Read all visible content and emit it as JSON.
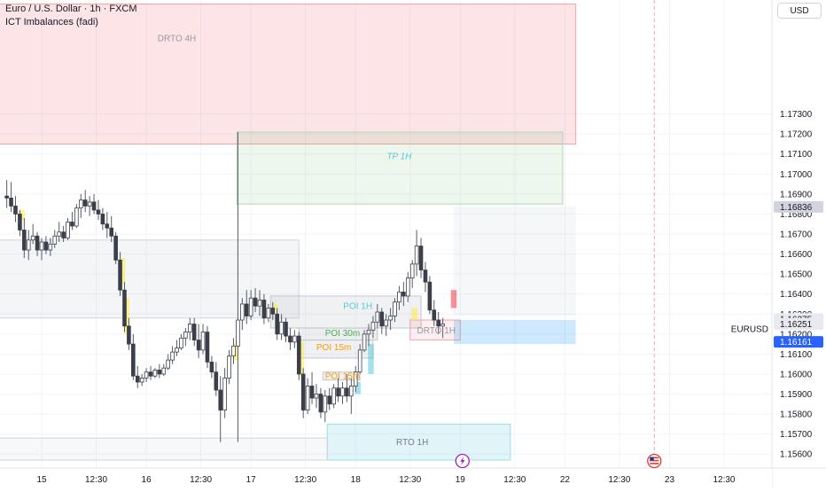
{
  "header": {
    "title": "Euro / U.S. Dollar · 1h · FXCM",
    "indicator": "ICT Imbalances (fadi)",
    "currency": "USD"
  },
  "chart_data": {
    "type": "candlestick",
    "symbol": "EURUSD",
    "title": "Euro / U.S. Dollar · 1h · FXCM",
    "ylim": [
      1.1553,
      1.1787
    ],
    "y_ticks": [
      {
        "value": 1.173,
        "label": "1.17300"
      },
      {
        "value": 1.172,
        "label": "1.17200"
      },
      {
        "value": 1.171,
        "label": "1.17100"
      },
      {
        "value": 1.17,
        "label": "1.17000"
      },
      {
        "value": 1.169,
        "label": "1.16900"
      },
      {
        "value": 1.168,
        "label": "1.16800"
      },
      {
        "value": 1.167,
        "label": "1.16700"
      },
      {
        "value": 1.166,
        "label": "1.16600"
      },
      {
        "value": 1.165,
        "label": "1.16500"
      },
      {
        "value": 1.164,
        "label": "1.16400"
      },
      {
        "value": 1.163,
        "label": "1.16300"
      },
      {
        "value": 1.162,
        "label": "1.16200"
      },
      {
        "value": 1.161,
        "label": "1.16100"
      },
      {
        "value": 1.16,
        "label": "1.16000"
      },
      {
        "value": 1.159,
        "label": "1.15900"
      },
      {
        "value": 1.158,
        "label": "1.15800"
      },
      {
        "value": 1.157,
        "label": "1.15700"
      },
      {
        "value": 1.156,
        "label": "1.15600"
      }
    ],
    "x_ticks": [
      {
        "t": 8,
        "label": "15"
      },
      {
        "t": 20.5,
        "label": "12:30"
      },
      {
        "t": 32,
        "label": "16"
      },
      {
        "t": 44.5,
        "label": "12:30"
      },
      {
        "t": 56,
        "label": "17"
      },
      {
        "t": 68.5,
        "label": "12:30"
      },
      {
        "t": 80,
        "label": "18"
      },
      {
        "t": 92.5,
        "label": "12:30"
      },
      {
        "t": 104,
        "label": "19"
      },
      {
        "t": 116.5,
        "label": "12:30"
      },
      {
        "t": 128,
        "label": "22"
      },
      {
        "t": 140.5,
        "label": "12:30"
      },
      {
        "t": 152,
        "label": "23"
      },
      {
        "t": 164.5,
        "label": "12:30"
      }
    ],
    "price_labels": [
      {
        "value": 1.16836,
        "label": "1.16836",
        "style": "gray"
      },
      {
        "value": 1.16275,
        "label": "1.16275",
        "style": "light"
      },
      {
        "value": 1.16251,
        "label": "1.16251",
        "style": "light"
      },
      {
        "value": 1.16161,
        "label": "1.16161",
        "style": "blue"
      }
    ],
    "zones": [
      {
        "label": "DRTO 4H",
        "t0": -2,
        "t1": 130.5,
        "top": 1.1785,
        "bottom": 1.1715,
        "fill": "rgba(242,54,69,0.13)",
        "stroke": "#f4a3a8",
        "text_color": "#9598a1",
        "text_t": 39,
        "text_y": 1.1768
      },
      {
        "label": "TP 1H",
        "t0": 52.8,
        "t1": 127.5,
        "top": 1.1721,
        "bottom": 1.1685,
        "fill": "rgba(76,175,80,0.10)",
        "stroke": "#b2d8b4",
        "text_color": "#5ac8d8",
        "text_t": 90,
        "text_y": 1.1709,
        "italic": true
      },
      {
        "label": "",
        "t0": -2,
        "t1": 67,
        "top": 1.1667,
        "bottom": 1.1628,
        "fill": "rgba(180,186,196,0.14)",
        "stroke": "#d1d4dc",
        "text_color": "#9598a1"
      },
      {
        "label": "",
        "t0": 102.5,
        "t1": 130.5,
        "top": 1.1684,
        "bottom": 1.1629,
        "fill": "rgba(180,186,196,0.12)",
        "stroke": "rgba(0,0,0,0)",
        "text_color": "#9598a1"
      },
      {
        "label": "POI 1H",
        "t0": 60.5,
        "t1": 95,
        "top": 1.1639,
        "bottom": 1.1623,
        "fill": "rgba(180,186,196,0.20)",
        "stroke": "#c3c6ce",
        "text_color": "#5ac8d8",
        "text_t": 80.5,
        "text_y": 1.1634
      },
      {
        "label": "POI 30m",
        "t0": 67,
        "t1": 85,
        "top": 1.1623,
        "bottom": 1.1617,
        "fill": "rgba(180,186,196,0.25)",
        "stroke": "#c3c6ce",
        "text_color": "#4caf50",
        "text_t": 77,
        "text_y": 1.16205
      },
      {
        "label": "POI 15m",
        "t0": 67,
        "t1": 84,
        "top": 1.1617,
        "bottom": 1.1608,
        "fill": "rgba(180,186,196,0.20)",
        "stroke": "#c3c6ce",
        "text_color": "#ff9800",
        "text_t": 75,
        "text_y": 1.16135
      },
      {
        "label": "DRTO 1H",
        "t0": 92.5,
        "t1": 104,
        "top": 1.1627,
        "bottom": 1.1617,
        "fill": "rgba(242,54,69,0.08)",
        "stroke": "#f4a3a8",
        "text_color": "#9598a1",
        "text_t": 98.5,
        "text_y": 1.1622
      },
      {
        "label": "POI 15m",
        "t0": 72.5,
        "t1": 81,
        "top": 1.1601,
        "bottom": 1.1597,
        "fill": "rgba(180,186,196,0.18)",
        "stroke": "#c3c6ce",
        "text_color": "#ff9800",
        "text_t": 77,
        "text_y": 1.1599
      },
      {
        "label": "RTO 1H",
        "t0": 73.5,
        "t1": 115.5,
        "top": 1.1575,
        "bottom": 1.1557,
        "fill": "rgba(90,200,216,0.18)",
        "stroke": "#9fdbe6",
        "text_color": "#787b86",
        "text_t": 93,
        "text_y": 1.1566
      },
      {
        "label": "",
        "t0": -2,
        "t1": 73.5,
        "top": 1.1568,
        "bottom": 1.1557,
        "fill": "rgba(180,186,196,0.10)",
        "stroke": "#d1d4dc",
        "text_color": "#9598a1"
      },
      {
        "label": "",
        "t0": 102.5,
        "t1": 130.5,
        "top": 1.1627,
        "bottom": 1.1615,
        "fill": "rgba(33,150,243,0.22)",
        "stroke": "rgba(0,0,0,0)",
        "text_color": "#9598a1"
      }
    ],
    "highlights": [
      {
        "t": 3.5,
        "top": 1.1682,
        "bottom": 1.1677,
        "color": "rgba(255,235,59,0.55)"
      },
      {
        "t": 26.5,
        "top": 1.1658,
        "bottom": 1.1645,
        "color": "rgba(255,235,59,0.55)"
      },
      {
        "t": 27.5,
        "top": 1.1638,
        "bottom": 1.162,
        "color": "rgba(255,235,59,0.55)"
      },
      {
        "t": 52.5,
        "top": 1.1615,
        "bottom": 1.1607,
        "color": "rgba(255,235,59,0.55)"
      },
      {
        "t": 61.5,
        "top": 1.1635,
        "bottom": 1.1631,
        "color": "rgba(255,235,59,0.55)"
      },
      {
        "t": 67.5,
        "top": 1.1616,
        "bottom": 1.1599,
        "color": "rgba(255,235,59,0.55)"
      },
      {
        "t": 80.5,
        "top": 1.1596,
        "bottom": 1.159,
        "color": "rgba(90,200,216,0.55)"
      },
      {
        "t": 83.5,
        "top": 1.1615,
        "bottom": 1.16,
        "color": "rgba(90,200,216,0.55)"
      },
      {
        "t": 93.5,
        "top": 1.1633,
        "bottom": 1.1627,
        "color": "rgba(255,235,59,0.55)"
      },
      {
        "t": 102.5,
        "top": 1.1642,
        "bottom": 1.1633,
        "color": "rgba(242,54,69,0.55)"
      }
    ],
    "candles": [
      [
        1.1689,
        1.1697,
        1.1683,
        1.1688
      ],
      [
        1.1688,
        1.1696,
        1.1681,
        1.1684
      ],
      [
        1.1684,
        1.1689,
        1.1676,
        1.168
      ],
      [
        1.168,
        1.1682,
        1.1669,
        1.1672
      ],
      [
        1.1672,
        1.1678,
        1.1658,
        1.1662
      ],
      [
        1.1662,
        1.1672,
        1.1657,
        1.1667
      ],
      [
        1.1667,
        1.1675,
        1.1665,
        1.1669
      ],
      [
        1.1669,
        1.1671,
        1.1659,
        1.1662
      ],
      [
        1.1662,
        1.1668,
        1.1657,
        1.1666
      ],
      [
        1.1666,
        1.1669,
        1.166,
        1.1662
      ],
      [
        1.1662,
        1.1668,
        1.1659,
        1.1665
      ],
      [
        1.1665,
        1.1672,
        1.1663,
        1.1669
      ],
      [
        1.1669,
        1.1676,
        1.1666,
        1.1671
      ],
      [
        1.1671,
        1.1674,
        1.1666,
        1.1668
      ],
      [
        1.1668,
        1.1678,
        1.1667,
        1.1676
      ],
      [
        1.1676,
        1.1681,
        1.1672,
        1.1674
      ],
      [
        1.1674,
        1.1685,
        1.1673,
        1.1683
      ],
      [
        1.1683,
        1.169,
        1.1678,
        1.1687
      ],
      [
        1.1687,
        1.1692,
        1.1681,
        1.1684
      ],
      [
        1.1684,
        1.1689,
        1.1679,
        1.1686
      ],
      [
        1.1686,
        1.169,
        1.168,
        1.1682
      ],
      [
        1.1682,
        1.1687,
        1.1677,
        1.168
      ],
      [
        1.168,
        1.1683,
        1.1672,
        1.1675
      ],
      [
        1.1675,
        1.1681,
        1.1668,
        1.1673
      ],
      [
        1.1673,
        1.1679,
        1.1666,
        1.1669
      ],
      [
        1.1669,
        1.1671,
        1.1655,
        1.1657
      ],
      [
        1.1657,
        1.1661,
        1.1639,
        1.1642
      ],
      [
        1.1642,
        1.1646,
        1.1621,
        1.1624
      ],
      [
        1.1624,
        1.1628,
        1.1612,
        1.1615
      ],
      [
        1.1615,
        1.162,
        1.1597,
        1.1599
      ],
      [
        1.1599,
        1.1604,
        1.1593,
        1.1596
      ],
      [
        1.1596,
        1.16,
        1.1594,
        1.1598
      ],
      [
        1.1598,
        1.1603,
        1.1596,
        1.1601
      ],
      [
        1.1601,
        1.1604,
        1.1597,
        1.1599
      ],
      [
        1.1599,
        1.1603,
        1.1598,
        1.1602
      ],
      [
        1.1602,
        1.1605,
        1.1598,
        1.16
      ],
      [
        1.16,
        1.1605,
        1.1599,
        1.1603
      ],
      [
        1.1603,
        1.161,
        1.1602,
        1.1607
      ],
      [
        1.1607,
        1.1614,
        1.1605,
        1.1611
      ],
      [
        1.1611,
        1.1617,
        1.1609,
        1.1613
      ],
      [
        1.1613,
        1.162,
        1.1612,
        1.1618
      ],
      [
        1.1618,
        1.1623,
        1.1614,
        1.1621
      ],
      [
        1.1621,
        1.1628,
        1.1617,
        1.1625
      ],
      [
        1.1625,
        1.1628,
        1.1614,
        1.1617
      ],
      [
        1.1617,
        1.1625,
        1.1608,
        1.1612
      ],
      [
        1.1612,
        1.1625,
        1.161,
        1.1621
      ],
      [
        1.1621,
        1.1624,
        1.1603,
        1.1606
      ],
      [
        1.1606,
        1.1609,
        1.1598,
        1.1601
      ],
      [
        1.1601,
        1.1606,
        1.1589,
        1.1592
      ],
      [
        1.1592,
        1.1599,
        1.1566,
        1.1582
      ],
      [
        1.1582,
        1.1603,
        1.1578,
        1.1598
      ],
      [
        1.1598,
        1.1612,
        1.1595,
        1.1609
      ],
      [
        1.1609,
        1.1618,
        1.1605,
        1.1614
      ],
      [
        1.1614,
        1.1721,
        1.1566,
        1.1627
      ],
      [
        1.1627,
        1.1638,
        1.1622,
        1.1635
      ],
      [
        1.1635,
        1.1642,
        1.1625,
        1.1629
      ],
      [
        1.1629,
        1.1642,
        1.1627,
        1.1638
      ],
      [
        1.1638,
        1.1643,
        1.1631,
        1.1634
      ],
      [
        1.1634,
        1.1642,
        1.1629,
        1.1637
      ],
      [
        1.1637,
        1.164,
        1.1625,
        1.1628
      ],
      [
        1.1628,
        1.1635,
        1.1626,
        1.1633
      ],
      [
        1.1633,
        1.1636,
        1.1627,
        1.163
      ],
      [
        1.163,
        1.1633,
        1.1617,
        1.162
      ],
      [
        1.162,
        1.163,
        1.1617,
        1.1626
      ],
      [
        1.1626,
        1.1628,
        1.1616,
        1.1619
      ],
      [
        1.1619,
        1.1623,
        1.1612,
        1.1616
      ],
      [
        1.1616,
        1.1622,
        1.1613,
        1.1619
      ],
      [
        1.1619,
        1.1621,
        1.1597,
        1.16
      ],
      [
        1.16,
        1.1603,
        1.1578,
        1.1582
      ],
      [
        1.1582,
        1.1598,
        1.158,
        1.1594
      ],
      [
        1.1594,
        1.1601,
        1.1585,
        1.1588
      ],
      [
        1.1588,
        1.1595,
        1.1583,
        1.159
      ],
      [
        1.159,
        1.1593,
        1.1578,
        1.1581
      ],
      [
        1.1581,
        1.1592,
        1.1576,
        1.1589
      ],
      [
        1.1589,
        1.1593,
        1.1582,
        1.1585
      ],
      [
        1.1585,
        1.1595,
        1.1583,
        1.1593
      ],
      [
        1.1593,
        1.1598,
        1.1586,
        1.1589
      ],
      [
        1.1589,
        1.1596,
        1.1585,
        1.1593
      ],
      [
        1.1593,
        1.16,
        1.1586,
        1.1589
      ],
      [
        1.1589,
        1.1598,
        1.158,
        1.1594
      ],
      [
        1.1594,
        1.1604,
        1.1591,
        1.1601
      ],
      [
        1.1601,
        1.1615,
        1.16,
        1.1612
      ],
      [
        1.1612,
        1.1622,
        1.1611,
        1.162
      ],
      [
        1.162,
        1.1625,
        1.1614,
        1.1622
      ],
      [
        1.1622,
        1.1629,
        1.1618,
        1.1626
      ],
      [
        1.1626,
        1.1635,
        1.1623,
        1.1631
      ],
      [
        1.1631,
        1.1633,
        1.162,
        1.1624
      ],
      [
        1.1624,
        1.163,
        1.1619,
        1.1627
      ],
      [
        1.1627,
        1.1633,
        1.1622,
        1.1629
      ],
      [
        1.1629,
        1.1638,
        1.1626,
        1.1636
      ],
      [
        1.1636,
        1.1644,
        1.1632,
        1.1641
      ],
      [
        1.1641,
        1.1646,
        1.1634,
        1.1639
      ],
      [
        1.1639,
        1.1651,
        1.1636,
        1.1648
      ],
      [
        1.1648,
        1.1657,
        1.1643,
        1.1655
      ],
      [
        1.1655,
        1.1672,
        1.1649,
        1.1664
      ],
      [
        1.1664,
        1.1668,
        1.1648,
        1.1652
      ],
      [
        1.1652,
        1.1656,
        1.1641,
        1.1646
      ],
      [
        1.1646,
        1.1649,
        1.163,
        1.1632
      ],
      [
        1.1632,
        1.1637,
        1.1624,
        1.1627
      ],
      [
        1.1627,
        1.1631,
        1.162,
        1.1624
      ],
      [
        1.1624,
        1.1628,
        1.1618,
        1.1625
      ]
    ],
    "grid": true,
    "vertical_marker_t": 148.5
  }
}
